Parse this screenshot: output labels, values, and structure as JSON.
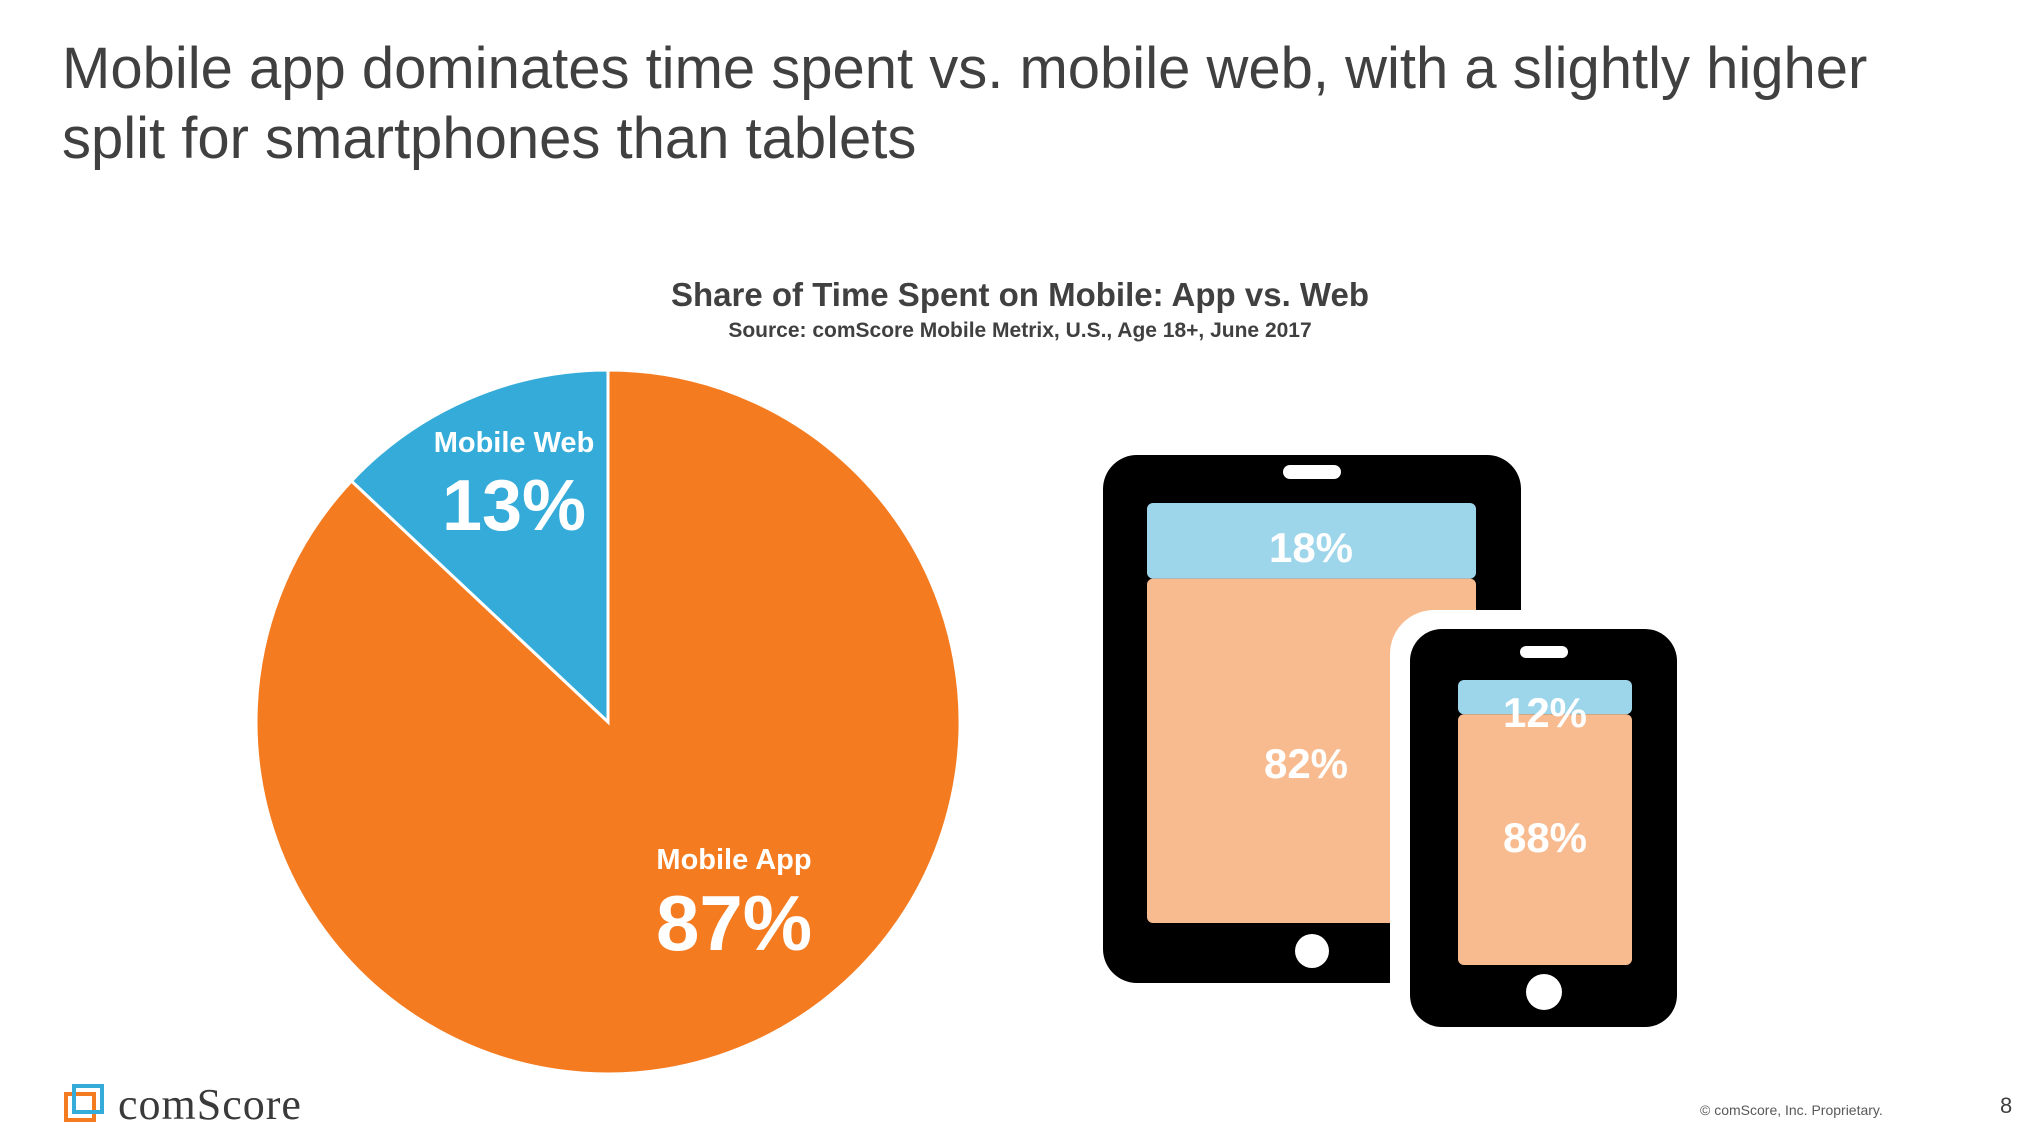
{
  "slide": {
    "title": "Mobile app dominates time spent vs. mobile web, with a slightly higher split for smartphones than tablets",
    "page_number": "8",
    "copyright": "© comScore, Inc. Proprietary.",
    "logo_text": "comScore",
    "logo_icon": "comscore-logo-icon"
  },
  "colors": {
    "app": "#F47B20",
    "web": "#34ABD8",
    "app_light": "#F8BB8F",
    "web_light": "#9DD5EA",
    "device": "#000000"
  },
  "chart_data": [
    {
      "type": "pie",
      "title": "Share of Time Spent on Mobile: App vs. Web",
      "subtitle": "Source: comScore Mobile Metrix, U.S., Age 18+, June 2017",
      "slices": [
        {
          "name": "Mobile Web",
          "value": 13,
          "label": "13%"
        },
        {
          "name": "Mobile App",
          "value": 87,
          "label": "87%"
        }
      ]
    },
    {
      "type": "bar",
      "stacked": true,
      "categories": [
        "tablet",
        "smartphone"
      ],
      "series": [
        {
          "name": "Mobile Web",
          "values": [
            18,
            12
          ],
          "labels": [
            "18%",
            "12%"
          ]
        },
        {
          "name": "Mobile App",
          "values": [
            82,
            88
          ],
          "labels": [
            "82%",
            "88%"
          ]
        }
      ]
    }
  ]
}
